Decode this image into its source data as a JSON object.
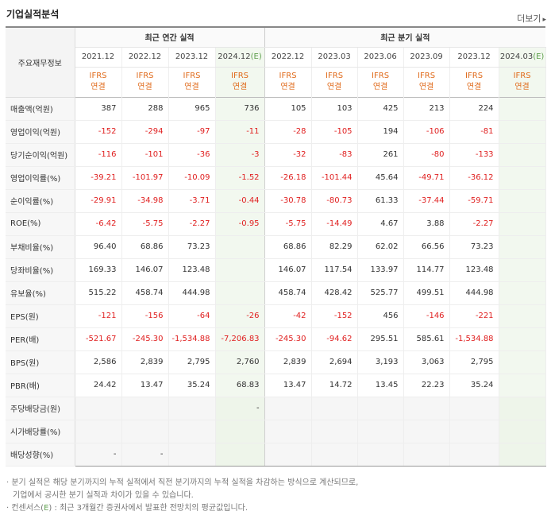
{
  "header": {
    "title": "기업실적분석",
    "more_label": "더보기",
    "more_icon": "chevron-right-icon"
  },
  "table": {
    "corner_label": "주요재무정보",
    "group_annual": "최근 연간 실적",
    "group_quarter": "최근 분기 실적",
    "periods_annual": [
      "2021.12",
      "2022.12",
      "2023.12",
      "2024.12(E)"
    ],
    "periods_quarter": [
      "2022.12",
      "2023.03",
      "2023.06",
      "2023.09",
      "2023.12",
      "2024.03(E)"
    ],
    "ifrs_top": "IFRS",
    "ifrs_bottom": "연결",
    "rows": [
      {
        "label": "매출액(억원)",
        "values": [
          "387",
          "288",
          "965",
          "736",
          "105",
          "103",
          "425",
          "213",
          "224",
          ""
        ]
      },
      {
        "label": "영업이익(억원)",
        "values": [
          "-152",
          "-294",
          "-97",
          "-11",
          "-28",
          "-105",
          "194",
          "-106",
          "-81",
          ""
        ]
      },
      {
        "label": "당기순이익(억원)",
        "values": [
          "-116",
          "-101",
          "-36",
          "-3",
          "-32",
          "-83",
          "261",
          "-80",
          "-133",
          ""
        ]
      },
      {
        "label": "영업이익률(%)",
        "values": [
          "-39.21",
          "-101.97",
          "-10.09",
          "-1.52",
          "-26.18",
          "-101.44",
          "45.64",
          "-49.71",
          "-36.12",
          ""
        ]
      },
      {
        "label": "순이익률(%)",
        "values": [
          "-29.91",
          "-34.98",
          "-3.71",
          "-0.44",
          "-30.78",
          "-80.73",
          "61.33",
          "-37.44",
          "-59.71",
          ""
        ]
      },
      {
        "label": "ROE(%)",
        "values": [
          "-6.42",
          "-5.75",
          "-2.27",
          "-0.95",
          "-5.75",
          "-14.49",
          "4.67",
          "3.88",
          "-2.27",
          ""
        ]
      },
      {
        "label": "부채비율(%)",
        "values": [
          "96.40",
          "68.86",
          "73.23",
          "",
          "68.86",
          "82.29",
          "62.02",
          "66.56",
          "73.23",
          ""
        ]
      },
      {
        "label": "당좌비율(%)",
        "values": [
          "169.33",
          "146.07",
          "123.48",
          "",
          "146.07",
          "117.54",
          "133.97",
          "114.77",
          "123.48",
          ""
        ]
      },
      {
        "label": "유보율(%)",
        "values": [
          "515.22",
          "458.74",
          "444.98",
          "",
          "458.74",
          "428.42",
          "525.77",
          "499.51",
          "444.98",
          ""
        ]
      },
      {
        "label": "EPS(원)",
        "values": [
          "-121",
          "-156",
          "-64",
          "-26",
          "-42",
          "-152",
          "456",
          "-146",
          "-221",
          ""
        ]
      },
      {
        "label": "PER(배)",
        "values": [
          "-521.67",
          "-245.30",
          "-1,534.88",
          "-7,206.83",
          "-245.30",
          "-94.62",
          "295.51",
          "585.61",
          "-1,534.88",
          ""
        ]
      },
      {
        "label": "BPS(원)",
        "values": [
          "2,586",
          "2,839",
          "2,795",
          "2,760",
          "2,839",
          "2,694",
          "3,193",
          "3,063",
          "2,795",
          ""
        ]
      },
      {
        "label": "PBR(배)",
        "values": [
          "24.42",
          "13.47",
          "35.24",
          "68.83",
          "13.47",
          "14.72",
          "13.45",
          "22.23",
          "35.24",
          ""
        ]
      },
      {
        "label": "주당배당금(원)",
        "values": [
          "",
          "",
          "",
          "-",
          "",
          "",
          "",
          "",
          "",
          ""
        ]
      },
      {
        "label": "시가배당률(%)",
        "values": [
          "",
          "",
          "",
          "",
          "",
          "",
          "",
          "",
          "",
          ""
        ]
      },
      {
        "label": "배당성향(%)",
        "values": [
          "-",
          "-",
          "",
          "",
          "",
          "",
          "",
          "",
          "",
          ""
        ]
      }
    ]
  },
  "notes": {
    "line1": "· 분기 실적은 해당 분기까지의 누적 실적에서 직전 분기까지의 누적 실적을 차감하는 방식으로 계산되므로,",
    "line2": "기업에서 공시한 분기 실적과 차이가 있을 수 있습니다.",
    "line3_pre": "· 컨센서스(",
    "line3_e": "E",
    "line3_post": ") : 최근 3개월간 증권사에서 발표한 전망치의 평균값입니다."
  }
}
